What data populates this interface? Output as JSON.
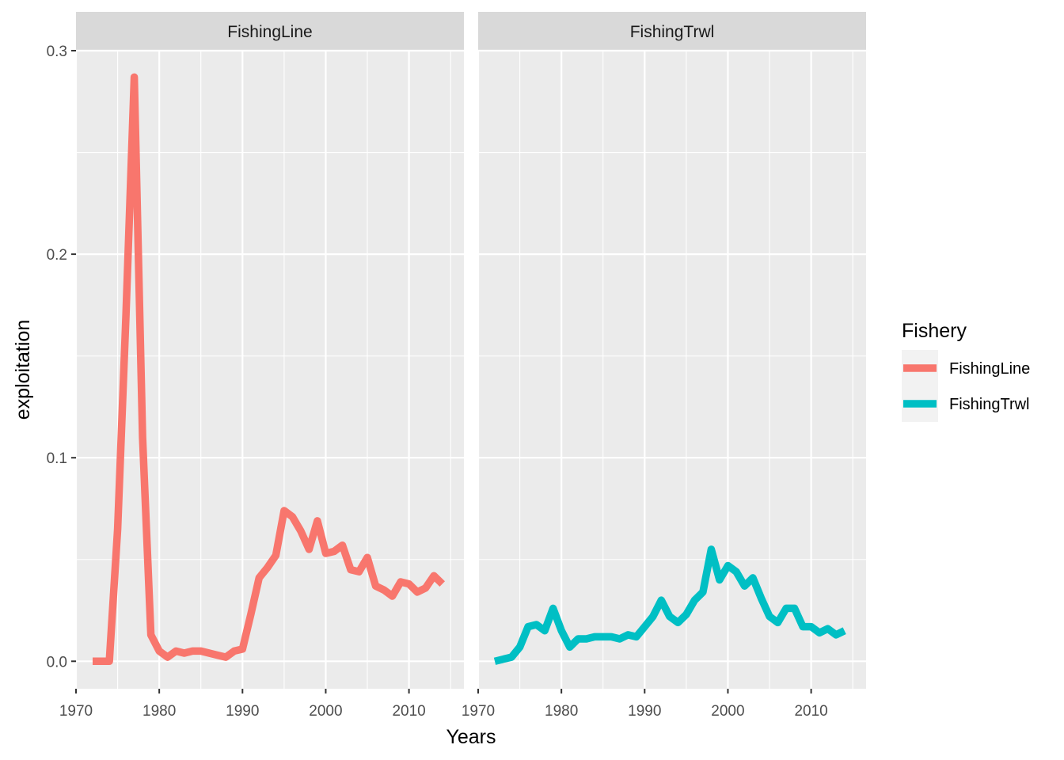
{
  "chart_data": {
    "type": "line",
    "facets": [
      "FishingLine",
      "FishingTrwl"
    ],
    "xlabel": "Years",
    "ylabel": "exploitation",
    "xlim": [
      1970,
      2016.6
    ],
    "ylim": [
      -0.0135,
      0.3
    ],
    "x_ticks": [
      1970,
      1980,
      1990,
      2000,
      2010
    ],
    "x_tick_labels": [
      "1970",
      "1980",
      "1990",
      "2000",
      "2010"
    ],
    "y_ticks": [
      0.0,
      0.1,
      0.2,
      0.3
    ],
    "y_tick_labels": [
      "0.0",
      "0.1",
      "0.2",
      "0.3"
    ],
    "grid": true,
    "legend": {
      "title": "Fishery",
      "position": "right",
      "entries": [
        "FishingLine",
        "FishingTrwl"
      ]
    },
    "series": [
      {
        "name": "FishingLine",
        "color": "#F8766D",
        "facet": "FishingLine",
        "x": [
          1972,
          1973,
          1974,
          1975,
          1976,
          1977,
          1978,
          1979,
          1980,
          1981,
          1982,
          1983,
          1984,
          1985,
          1986,
          1987,
          1988,
          1989,
          1990,
          1991,
          1992,
          1993,
          1994,
          1995,
          1996,
          1997,
          1998,
          1999,
          2000,
          2001,
          2002,
          2003,
          2004,
          2005,
          2006,
          2007,
          2008,
          2009,
          2010,
          2011,
          2012,
          2013,
          2014
        ],
        "values": [
          0.0,
          0.0,
          0.0,
          0.065,
          0.17,
          0.287,
          0.11,
          0.013,
          0.005,
          0.002,
          0.005,
          0.004,
          0.005,
          0.005,
          0.004,
          0.003,
          0.002,
          0.005,
          0.006,
          0.023,
          0.041,
          0.046,
          0.052,
          0.074,
          0.071,
          0.064,
          0.055,
          0.069,
          0.053,
          0.054,
          0.057,
          0.045,
          0.044,
          0.051,
          0.037,
          0.035,
          0.032,
          0.039,
          0.038,
          0.034,
          0.036,
          0.042,
          0.038
        ]
      },
      {
        "name": "FishingTrwl",
        "color": "#00BFC4",
        "facet": "FishingTrwl",
        "x": [
          1972,
          1973,
          1974,
          1975,
          1976,
          1977,
          1978,
          1979,
          1980,
          1981,
          1982,
          1983,
          1984,
          1985,
          1986,
          1987,
          1988,
          1989,
          1990,
          1991,
          1992,
          1993,
          1994,
          1995,
          1996,
          1997,
          1998,
          1999,
          2000,
          2001,
          2002,
          2003,
          2004,
          2005,
          2006,
          2007,
          2008,
          2009,
          2010,
          2011,
          2012,
          2013,
          2014
        ],
        "values": [
          0.0,
          0.001,
          0.002,
          0.007,
          0.017,
          0.018,
          0.015,
          0.026,
          0.015,
          0.007,
          0.011,
          0.011,
          0.012,
          0.012,
          0.012,
          0.011,
          0.013,
          0.012,
          0.017,
          0.022,
          0.03,
          0.022,
          0.019,
          0.023,
          0.03,
          0.034,
          0.055,
          0.04,
          0.047,
          0.044,
          0.037,
          0.041,
          0.031,
          0.022,
          0.019,
          0.026,
          0.026,
          0.017,
          0.017,
          0.014,
          0.016,
          0.013,
          0.015
        ]
      }
    ]
  }
}
